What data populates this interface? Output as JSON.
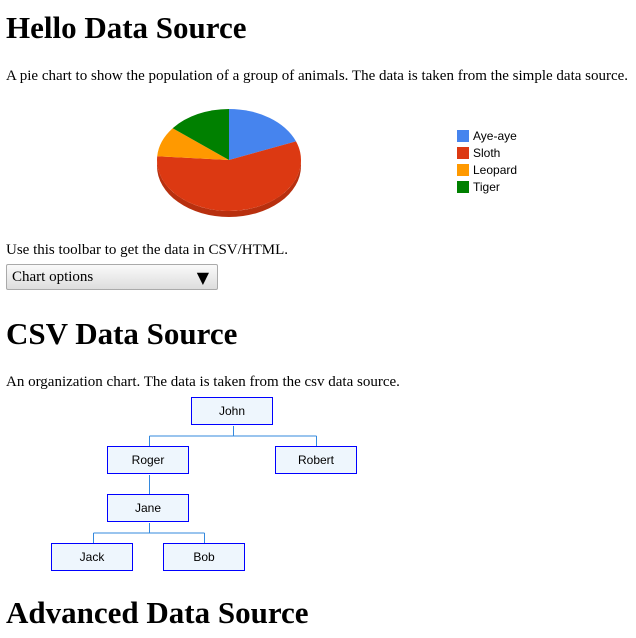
{
  "sections": [
    {
      "title": "Hello Data Source",
      "description": "A pie chart to show the population of a group of animals. The data is taken from the simple data source."
    },
    {
      "title": "CSV Data Source",
      "description": "An organization chart. The data is taken from the csv data source."
    },
    {
      "title": "Advanced Data Source"
    }
  ],
  "toolbar": {
    "caption": "Use this toolbar to get the data in CSV/HTML.",
    "select_label": "Chart options",
    "arrow": "▼"
  },
  "chart_data": {
    "type": "pie",
    "is3D": true,
    "legend": "right",
    "categories": [
      "Aye-aye",
      "Sloth",
      "Leopard",
      "Tiger"
    ],
    "values": [
      100,
      300,
      50,
      75
    ],
    "colors": [
      "#4684ee",
      "#dc3912",
      "#ff9900",
      "#008000"
    ]
  },
  "org_chart": {
    "nodes": [
      {
        "name": "John",
        "parent": null
      },
      {
        "name": "Roger",
        "parent": "John"
      },
      {
        "name": "Robert",
        "parent": "John"
      },
      {
        "name": "Jane",
        "parent": "Roger"
      },
      {
        "name": "Jack",
        "parent": "Jane"
      },
      {
        "name": "Bob",
        "parent": "Jane"
      }
    ],
    "border_color": "#0000ff",
    "fill_color": "#eef6fd",
    "line_color": "#3388dd"
  }
}
